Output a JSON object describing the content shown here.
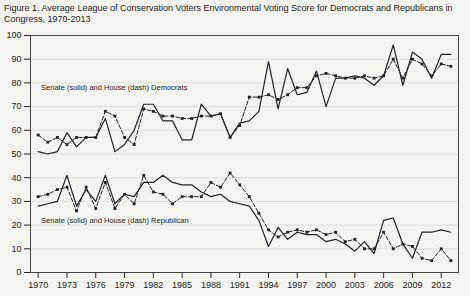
{
  "chart_data": {
    "type": "line",
    "title": "Figure 1. Average League of Conservation Voters Environmental Voting Score for Democrats and Republicans in Congress, 1970-2013",
    "x": [
      1970,
      1971,
      1972,
      1973,
      1974,
      1975,
      1976,
      1977,
      1978,
      1979,
      1980,
      1981,
      1982,
      1983,
      1984,
      1985,
      1986,
      1987,
      1988,
      1989,
      1990,
      1991,
      1992,
      1993,
      1994,
      1995,
      1996,
      1997,
      1998,
      1999,
      2000,
      2001,
      2002,
      2003,
      2004,
      2005,
      2006,
      2007,
      2008,
      2009,
      2010,
      2011,
      2012,
      2013
    ],
    "series": [
      {
        "color": "#222222",
        "line_style": "solid",
        "marker": "none",
        "values": [
          51,
          50,
          51,
          59,
          53,
          57,
          57,
          65,
          51,
          54,
          60,
          71,
          71,
          64,
          64,
          56,
          56,
          71,
          66,
          67,
          57,
          63,
          64,
          68,
          89,
          69,
          86,
          75,
          76,
          85,
          70,
          82,
          82,
          83,
          82,
          79,
          83,
          96,
          79,
          93,
          90,
          82,
          92,
          92
        ]
      },
      {
        "color": "#222222",
        "line_style": "dashed",
        "marker": "square",
        "values": [
          58,
          55,
          57,
          54,
          57,
          57,
          57,
          68,
          66,
          57,
          54,
          69,
          68,
          66,
          66,
          65,
          65,
          66,
          66,
          67,
          57,
          62,
          74,
          74,
          75,
          73,
          75,
          78,
          78,
          83,
          84,
          83,
          82,
          82,
          83,
          82,
          83,
          90,
          82,
          90,
          88,
          83,
          88,
          87
        ]
      },
      {
        "color": "#222222",
        "line_style": "solid",
        "marker": "none",
        "values": [
          28,
          29,
          30,
          41,
          28,
          35,
          30,
          41,
          29,
          33,
          32,
          38,
          38,
          41,
          38,
          37,
          37,
          34,
          32,
          33,
          30,
          29,
          28,
          22,
          11,
          19,
          14,
          17,
          16,
          16,
          13,
          14,
          12,
          9,
          13,
          8,
          22,
          23,
          12,
          6,
          17,
          17,
          18,
          17
        ]
      },
      {
        "color": "#222222",
        "line_style": "dashed",
        "marker": "square",
        "values": [
          32,
          33,
          35,
          36,
          26,
          36,
          27,
          38,
          27,
          33,
          29,
          41,
          34,
          33,
          29,
          32,
          32,
          32,
          38,
          36,
          42,
          37,
          32,
          25,
          18,
          15,
          17,
          18,
          17,
          18,
          16,
          17,
          13,
          14,
          10,
          10,
          17,
          10,
          12,
          11,
          6,
          5,
          10,
          5
        ]
      }
    ],
    "annotations": [
      {
        "text": "Senate (solid) and House (dash) Democrats",
        "x": 1970.3,
        "y": 77
      },
      {
        "text": "Senate (solid) and House (dash) Republican",
        "x": 1970.3,
        "y": 21
      }
    ],
    "xlim": [
      1969.2,
      2013.8
    ],
    "xticks": [
      1970,
      1973,
      1976,
      1979,
      1982,
      1985,
      1988,
      1991,
      1994,
      1997,
      2000,
      2003,
      2006,
      2009,
      2012
    ],
    "ylim": [
      0,
      100
    ],
    "yticks": [
      0,
      10,
      20,
      30,
      40,
      50,
      60,
      70,
      80,
      90,
      100
    ],
    "grid": "y"
  }
}
